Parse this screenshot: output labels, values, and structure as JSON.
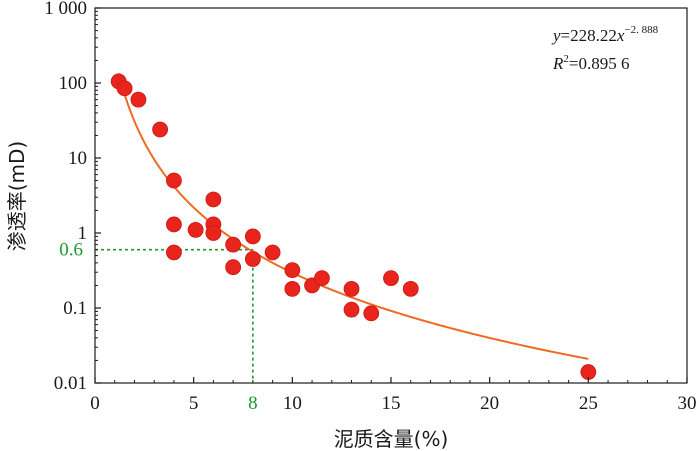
{
  "chart_data": {
    "type": "scatter",
    "title": "",
    "xlabel": "泥质含量(%)",
    "ylabel": "渗透率(mD)",
    "xlim": [
      0,
      30
    ],
    "ylim": [
      0.01,
      1000
    ],
    "yscale": "log",
    "x_ticks": [
      0,
      5,
      10,
      15,
      20,
      25,
      30
    ],
    "x_tick_labels": [
      "0",
      "5",
      "10",
      "15",
      "20",
      "25",
      "30"
    ],
    "y_ticks": [
      0.01,
      0.1,
      1,
      10,
      100,
      1000
    ],
    "y_tick_labels": [
      "0.01",
      "0.1",
      "1",
      "10",
      "100",
      "1 000"
    ],
    "grid": false,
    "legend": "none",
    "colors": {
      "points": "#e8241c",
      "points_edge": "#c81a12",
      "fit": "#f06a25",
      "guide": "#1e9a2e",
      "axis": "#1a1a1a"
    },
    "points": {
      "x": [
        1.2,
        1.5,
        2.2,
        3.3,
        4.0,
        4.0,
        4.0,
        5.1,
        6.0,
        6.0,
        6.0,
        7.0,
        7.0,
        8.0,
        8.0,
        9.0,
        10.0,
        10.0,
        11.0,
        11.5,
        13.0,
        13.0,
        14.0,
        15.0,
        16.0,
        25.0
      ],
      "y": [
        105,
        85,
        60,
        24,
        5,
        1.3,
        0.55,
        1.1,
        2.8,
        1.3,
        1.0,
        0.7,
        0.35,
        0.9,
        0.45,
        0.55,
        0.32,
        0.18,
        0.2,
        0.25,
        0.18,
        0.095,
        0.085,
        0.25,
        0.18,
        0.014
      ]
    },
    "fit": {
      "a": 228.22,
      "b": -2.888,
      "x_range": [
        1.2,
        25
      ],
      "equation": {
        "y_var": "y",
        "equals_coef": "=228.22",
        "x_var": "x",
        "exponent": "−2. 888",
        "r_var": "R",
        "r_sup": "2",
        "r_value": "=0.895 6"
      }
    },
    "highlight": {
      "x": 8,
      "y": 0.6,
      "x_label": "8",
      "y_label": "0.6"
    }
  }
}
